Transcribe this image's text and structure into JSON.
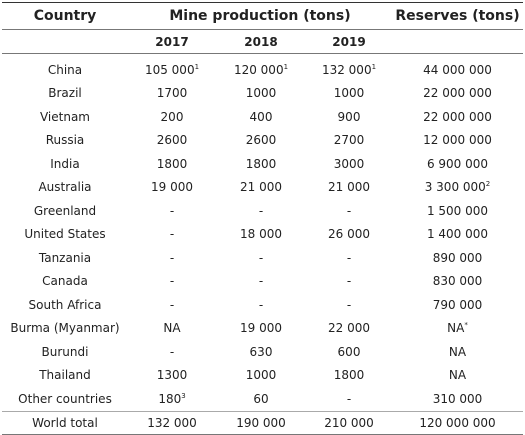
{
  "headers": {
    "country": "Country",
    "mine_production": "Mine production (tons)",
    "reserves": "Reserves (tons)",
    "years": [
      "2017",
      "2018",
      "2019"
    ]
  },
  "rows": [
    {
      "country": "China",
      "y2017": "105 000",
      "y2017_note": "1",
      "y2018": "120 000",
      "y2018_note": "1",
      "y2019": "132 000",
      "y2019_note": "1",
      "reserves": "44 000 000",
      "reserves_note": ""
    },
    {
      "country": "Brazil",
      "y2017": "1700",
      "y2017_note": "",
      "y2018": "1000",
      "y2018_note": "",
      "y2019": "1000",
      "y2019_note": "",
      "reserves": "22 000 000",
      "reserves_note": ""
    },
    {
      "country": "Vietnam",
      "y2017": "200",
      "y2017_note": "",
      "y2018": "400",
      "y2018_note": "",
      "y2019": "900",
      "y2019_note": "",
      "reserves": "22 000 000",
      "reserves_note": ""
    },
    {
      "country": "Russia",
      "y2017": "2600",
      "y2017_note": "",
      "y2018": "2600",
      "y2018_note": "",
      "y2019": "2700",
      "y2019_note": "",
      "reserves": "12 000 000",
      "reserves_note": ""
    },
    {
      "country": "India",
      "y2017": "1800",
      "y2017_note": "",
      "y2018": "1800",
      "y2018_note": "",
      "y2019": "3000",
      "y2019_note": "",
      "reserves": "6 900 000",
      "reserves_note": ""
    },
    {
      "country": "Australia",
      "y2017": "19 000",
      "y2017_note": "",
      "y2018": "21 000",
      "y2018_note": "",
      "y2019": "21 000",
      "y2019_note": "",
      "reserves": "3 300 000",
      "reserves_note": "2"
    },
    {
      "country": "Greenland",
      "y2017": "-",
      "y2017_note": "",
      "y2018": "-",
      "y2018_note": "",
      "y2019": "-",
      "y2019_note": "",
      "reserves": "1 500 000",
      "reserves_note": ""
    },
    {
      "country": "United States",
      "y2017": "-",
      "y2017_note": "",
      "y2018": "18 000",
      "y2018_note": "",
      "y2019": "26 000",
      "y2019_note": "",
      "reserves": "1 400 000",
      "reserves_note": ""
    },
    {
      "country": "Tanzania",
      "y2017": "-",
      "y2017_note": "",
      "y2018": "-",
      "y2018_note": "",
      "y2019": "-",
      "y2019_note": "",
      "reserves": "890 000",
      "reserves_note": ""
    },
    {
      "country": "Canada",
      "y2017": "-",
      "y2017_note": "",
      "y2018": "-",
      "y2018_note": "",
      "y2019": "-",
      "y2019_note": "",
      "reserves": "830 000",
      "reserves_note": ""
    },
    {
      "country": "South Africa",
      "y2017": "-",
      "y2017_note": "",
      "y2018": "-",
      "y2018_note": "",
      "y2019": "-",
      "y2019_note": "",
      "reserves": "790 000",
      "reserves_note": ""
    },
    {
      "country": "Burma (Myanmar)",
      "y2017": "NA",
      "y2017_note": "",
      "y2018": "19 000",
      "y2018_note": "",
      "y2019": "22 000",
      "y2019_note": "",
      "reserves": "NA",
      "reserves_note": "*"
    },
    {
      "country": "Burundi",
      "y2017": "-",
      "y2017_note": "",
      "y2018": "630",
      "y2018_note": "",
      "y2019": "600",
      "y2019_note": "",
      "reserves": "NA",
      "reserves_note": ""
    },
    {
      "country": "Thailand",
      "y2017": "1300",
      "y2017_note": "",
      "y2018": "1000",
      "y2018_note": "",
      "y2019": "1800",
      "y2019_note": "",
      "reserves": "NA",
      "reserves_note": ""
    },
    {
      "country": "Other countries",
      "y2017": "180",
      "y2017_note": "3",
      "y2018": "60",
      "y2018_note": "",
      "y2019": "-",
      "y2019_note": "",
      "reserves": "310 000",
      "reserves_note": ""
    }
  ],
  "total": {
    "country": "World total",
    "y2017": "132 000",
    "y2018": "190 000",
    "y2019": "210 000",
    "reserves": "120 000 000"
  }
}
